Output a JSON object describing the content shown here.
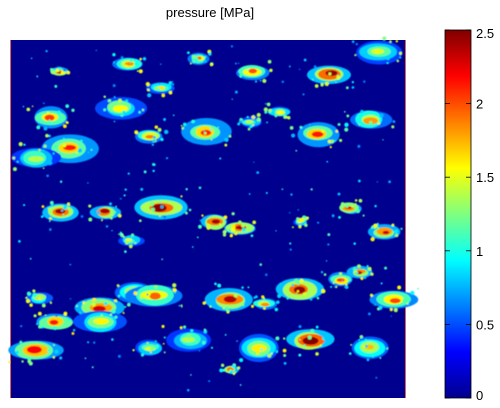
{
  "chart_data": {
    "type": "heatmap",
    "title": "pressure [MPa]",
    "xlabel": "",
    "ylabel": "",
    "colorbar": {
      "min": 0,
      "max": 2.5,
      "ticks": [
        0,
        0.5,
        1,
        1.5,
        2,
        2.5
      ],
      "tick_labels": [
        "0",
        "0.5",
        "1",
        "1.5",
        "2",
        "2.5"
      ],
      "colormap": "jet"
    },
    "background_color": "#00008f",
    "patch_rows_approx": 6
  }
}
